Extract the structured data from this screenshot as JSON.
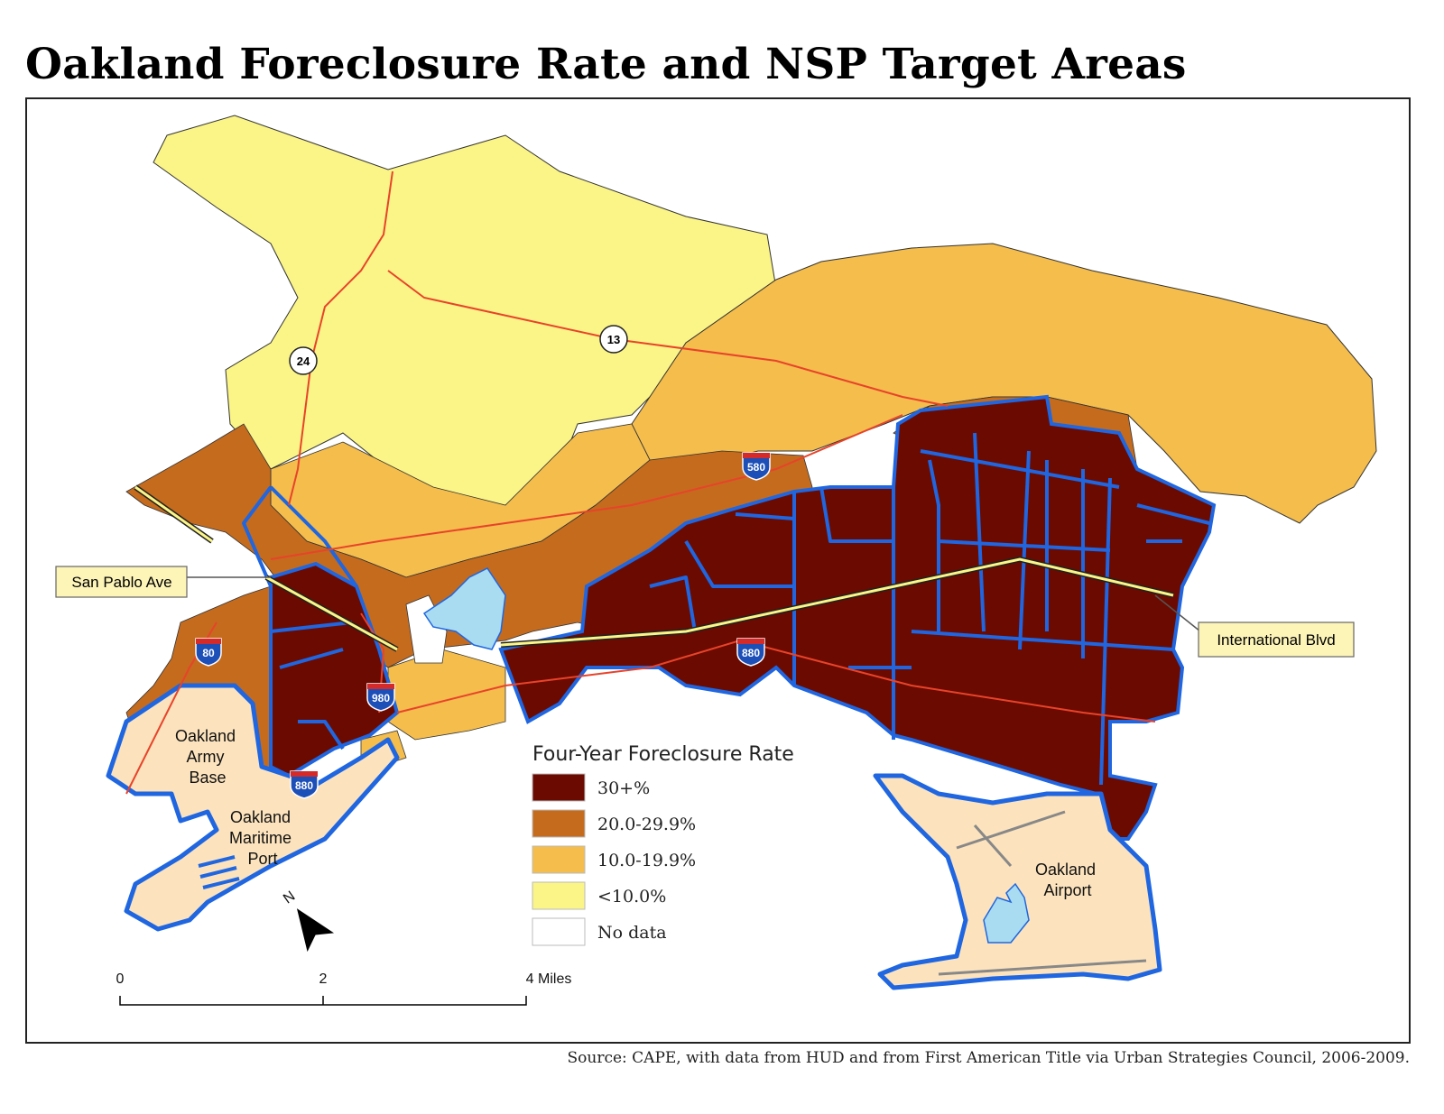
{
  "title": "Oakland Foreclosure Rate and NSP Target Areas",
  "source": "Source: CAPE, with data from HUD and from First American Title via Urban Strategies Council, 2006-2009.",
  "legend": {
    "title": "Four-Year Foreclosure Rate",
    "items": [
      {
        "label": "30+%",
        "color": "#6b0a00"
      },
      {
        "label": "20.0-29.9%",
        "color": "#c46b1e"
      },
      {
        "label": "10.0-19.9%",
        "color": "#f4bd4c"
      },
      {
        "label": "<10.0%",
        "color": "#fbf587"
      },
      {
        "label": "No data",
        "color": "#ffffff"
      }
    ]
  },
  "callouts": {
    "san_pablo": "San Pablo Ave",
    "international": "International Blvd"
  },
  "places": {
    "army_base": [
      "Oakland",
      "Army",
      "Base"
    ],
    "maritime_port": [
      "Oakland",
      "Maritime",
      "Port"
    ],
    "airport": [
      "Oakland",
      "Airport"
    ]
  },
  "routes": {
    "i580": "580",
    "i880_east": "880",
    "i880_west": "880",
    "i980": "980",
    "i80": "80",
    "sr24": "24",
    "sr13": "13"
  },
  "scale_bar": {
    "labels": [
      "0",
      "2",
      "4 Miles"
    ]
  },
  "north_arrow": "N",
  "colors": {
    "nsp_boundary": "#1f66e0",
    "highway": "#e8432a",
    "water": "#a9dcf0",
    "port_land": "#fce3bd"
  }
}
